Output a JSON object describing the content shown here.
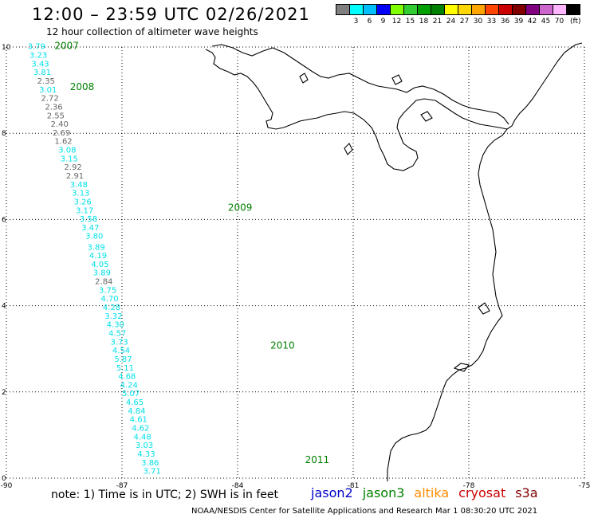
{
  "header": {
    "title": "12:00 – 23:59 UTC 02/26/2021",
    "subtitle": "12 hour collection of altimeter wave heights"
  },
  "colorbar": {
    "colors": [
      "#7f7f7f",
      "#00ffff",
      "#00bfff",
      "#0000ff",
      "#7fff00",
      "#32cd32",
      "#00a000",
      "#008000",
      "#ffff00",
      "#ffd700",
      "#ffa500",
      "#ff4500",
      "#cc0000",
      "#800000",
      "#800080",
      "#cc66cc",
      "#ffb6ff",
      "#000000"
    ],
    "labels": [
      "",
      "3",
      "6",
      "9",
      "12",
      "15",
      "18",
      "21",
      "24",
      "27",
      "30",
      "33",
      "36",
      "39",
      "42",
      "45",
      "70"
    ],
    "unit": "(ft)"
  },
  "axes": {
    "x_ticks": [
      "-90",
      "-87",
      "-84",
      "-81",
      "-78",
      "-75"
    ],
    "y_ticks": [
      "0",
      "2",
      "4",
      "6",
      "8",
      "10"
    ],
    "xlim": [
      -90,
      -75
    ],
    "ylim": [
      0,
      10
    ]
  },
  "track": {
    "time_labels": [
      {
        "text": "2007",
        "lat": 9.95,
        "lon": -88.75
      },
      {
        "text": "2008",
        "lat": 9.0,
        "lon": -88.35
      },
      {
        "text": "2009",
        "lat": 6.2,
        "lon": -84.25
      },
      {
        "text": "2010",
        "lat": 3.0,
        "lon": -83.15
      },
      {
        "text": "2011",
        "lat": 0.35,
        "lon": -82.25
      }
    ],
    "points": [
      {
        "v": "3.79",
        "lat": 9.95,
        "lon": -89.45,
        "c": "cyan"
      },
      {
        "v": "3.23",
        "lat": 9.75,
        "lon": -89.4,
        "c": "cyan"
      },
      {
        "v": "3.43",
        "lat": 9.55,
        "lon": -89.35,
        "c": "cyan"
      },
      {
        "v": "3.81",
        "lat": 9.35,
        "lon": -89.3,
        "c": "cyan"
      },
      {
        "v": "2.35",
        "lat": 9.15,
        "lon": -89.2,
        "c": "gray"
      },
      {
        "v": "3.01",
        "lat": 8.95,
        "lon": -89.15,
        "c": "cyan"
      },
      {
        "v": "2.72",
        "lat": 8.75,
        "lon": -89.1,
        "c": "gray"
      },
      {
        "v": "2.36",
        "lat": 8.55,
        "lon": -89.0,
        "c": "gray"
      },
      {
        "v": "2.55",
        "lat": 8.35,
        "lon": -88.95,
        "c": "gray"
      },
      {
        "v": "2.40",
        "lat": 8.15,
        "lon": -88.85,
        "c": "gray"
      },
      {
        "v": "2.69",
        "lat": 7.95,
        "lon": -88.8,
        "c": "gray"
      },
      {
        "v": "1.62",
        "lat": 7.75,
        "lon": -88.75,
        "c": "gray"
      },
      {
        "v": "3.08",
        "lat": 7.55,
        "lon": -88.65,
        "c": "cyan"
      },
      {
        "v": "3.15",
        "lat": 7.35,
        "lon": -88.6,
        "c": "cyan"
      },
      {
        "v": "2.92",
        "lat": 7.15,
        "lon": -88.5,
        "c": "gray"
      },
      {
        "v": "2.91",
        "lat": 6.95,
        "lon": -88.45,
        "c": "gray"
      },
      {
        "v": "3.48",
        "lat": 6.75,
        "lon": -88.35,
        "c": "cyan"
      },
      {
        "v": "3.13",
        "lat": 6.55,
        "lon": -88.3,
        "c": "cyan"
      },
      {
        "v": "3.26",
        "lat": 6.35,
        "lon": -88.25,
        "c": "cyan"
      },
      {
        "v": "3.17",
        "lat": 6.15,
        "lon": -88.2,
        "c": "cyan"
      },
      {
        "v": "3.58",
        "lat": 5.95,
        "lon": -88.1,
        "c": "cyan"
      },
      {
        "v": "3.47",
        "lat": 5.75,
        "lon": -88.05,
        "c": "cyan"
      },
      {
        "v": "3.80",
        "lat": 5.55,
        "lon": -87.95,
        "c": "cyan"
      },
      {
        "v": "3.89",
        "lat": 5.3,
        "lon": -87.9,
        "c": "cyan"
      },
      {
        "v": "4.19",
        "lat": 5.1,
        "lon": -87.85,
        "c": "cyan"
      },
      {
        "v": "4.05",
        "lat": 4.9,
        "lon": -87.8,
        "c": "cyan"
      },
      {
        "v": "3.89",
        "lat": 4.7,
        "lon": -87.75,
        "c": "cyan"
      },
      {
        "v": "2.84",
        "lat": 4.5,
        "lon": -87.7,
        "c": "gray"
      },
      {
        "v": "3.75",
        "lat": 4.3,
        "lon": -87.6,
        "c": "cyan"
      },
      {
        "v": "4.70",
        "lat": 4.1,
        "lon": -87.55,
        "c": "cyan"
      },
      {
        "v": "4.28",
        "lat": 3.9,
        "lon": -87.5,
        "c": "cyan"
      },
      {
        "v": "3.32",
        "lat": 3.7,
        "lon": -87.45,
        "c": "cyan"
      },
      {
        "v": "4.30",
        "lat": 3.5,
        "lon": -87.4,
        "c": "cyan"
      },
      {
        "v": "4.57",
        "lat": 3.3,
        "lon": -87.35,
        "c": "cyan"
      },
      {
        "v": "3.73",
        "lat": 3.1,
        "lon": -87.3,
        "c": "cyan"
      },
      {
        "v": "4.54",
        "lat": 2.9,
        "lon": -87.25,
        "c": "cyan"
      },
      {
        "v": "5.87",
        "lat": 2.7,
        "lon": -87.2,
        "c": "cyan"
      },
      {
        "v": "5.11",
        "lat": 2.5,
        "lon": -87.15,
        "c": "cyan"
      },
      {
        "v": "4.68",
        "lat": 2.3,
        "lon": -87.1,
        "c": "cyan"
      },
      {
        "v": "4.24",
        "lat": 2.1,
        "lon": -87.05,
        "c": "cyan"
      },
      {
        "v": "5.07",
        "lat": 1.9,
        "lon": -87.0,
        "c": "cyan"
      },
      {
        "v": "4.65",
        "lat": 1.7,
        "lon": -86.9,
        "c": "cyan"
      },
      {
        "v": "4.84",
        "lat": 1.5,
        "lon": -86.85,
        "c": "cyan"
      },
      {
        "v": "4.61",
        "lat": 1.3,
        "lon": -86.8,
        "c": "cyan"
      },
      {
        "v": "4.62",
        "lat": 1.1,
        "lon": -86.75,
        "c": "cyan"
      },
      {
        "v": "4.48",
        "lat": 0.9,
        "lon": -86.7,
        "c": "cyan"
      },
      {
        "v": "3.03",
        "lat": 0.7,
        "lon": -86.65,
        "c": "cyan"
      },
      {
        "v": "4.33",
        "lat": 0.5,
        "lon": -86.6,
        "c": "cyan"
      },
      {
        "v": "3.86",
        "lat": 0.3,
        "lon": -86.5,
        "c": "cyan"
      },
      {
        "v": "3.71",
        "lat": 0.1,
        "lon": -86.45,
        "c": "cyan"
      }
    ]
  },
  "colors": {
    "cyan": "#00e0e8",
    "gray": "#666666",
    "time_label": "#008000",
    "grid": "#000000",
    "coast": "#000000"
  },
  "note": "note:  1) Time is in UTC;  2) SWH is in feet",
  "satellites": [
    {
      "name": "jason2",
      "color": "#0000cc"
    },
    {
      "name": "jason3",
      "color": "#008000"
    },
    {
      "name": "altika",
      "color": "#ff8c00"
    },
    {
      "name": "cryosat",
      "color": "#cc0000"
    },
    {
      "name": "s3a",
      "color": "#800000"
    }
  ],
  "footer": "NOAA/NESDIS Center for Satellite Applications and Research    Mar  1 08:30:20 UTC 2021"
}
